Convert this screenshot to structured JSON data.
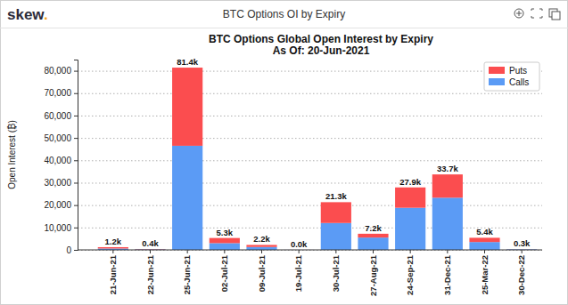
{
  "header": {
    "logo": "skew.",
    "panel_title": "BTC Options OI by Expiry"
  },
  "chart_data": {
    "type": "bar",
    "title": "BTC Options Global Open Interest by Expiry",
    "subtitle": "As Of: 20-Jun-2021",
    "y_label": "Open Interest (₿)",
    "categories": [
      "21-Jun-21",
      "22-Jun-21",
      "25-Jun-21",
      "02-Jul-21",
      "09-Jul-21",
      "19-Jul-21",
      "30-Jul-21",
      "27-Aug-21",
      "24-Sep-21",
      "31-Dec-21",
      "25-Mar-22",
      "30-Dec-22"
    ],
    "series": [
      {
        "name": "Calls",
        "color": "#5b9bf5",
        "values": [
          600,
          250,
          46500,
          3000,
          1300,
          20,
          12000,
          5500,
          18800,
          23300,
          3500,
          250
        ]
      },
      {
        "name": "Puts",
        "color": "#fb4d4f",
        "values": [
          600,
          150,
          34900,
          2300,
          900,
          10,
          9300,
          1700,
          9100,
          10400,
          1900,
          50
        ]
      }
    ],
    "totals": [
      1200,
      400,
      81400,
      5300,
      2200,
      30,
      21300,
      7200,
      27900,
      33700,
      5400,
      300
    ],
    "total_labels": [
      "1.2k",
      "0.4k",
      "81.4k",
      "5.3k",
      "2.2k",
      "0.0k",
      "21.3k",
      "7.2k",
      "27.9k",
      "33.7k",
      "5.4k",
      "0.3k"
    ],
    "stacked": true,
    "data_labels": true,
    "grid": true,
    "legend": "upper right",
    "ylim": [
      0,
      85000
    ],
    "yticks": [
      0,
      {
        "value": 10000,
        "label": "10,000"
      },
      {
        "value": 20000,
        "label": "20,000"
      },
      {
        "value": 30000,
        "label": "30,000"
      },
      {
        "value": 40000,
        "label": "40,000"
      },
      {
        "value": 50000,
        "label": "50,000"
      },
      {
        "value": 60000,
        "label": "60,000"
      },
      {
        "value": 70000,
        "label": "70,000"
      },
      {
        "value": 80000,
        "label": "80,000"
      }
    ]
  }
}
